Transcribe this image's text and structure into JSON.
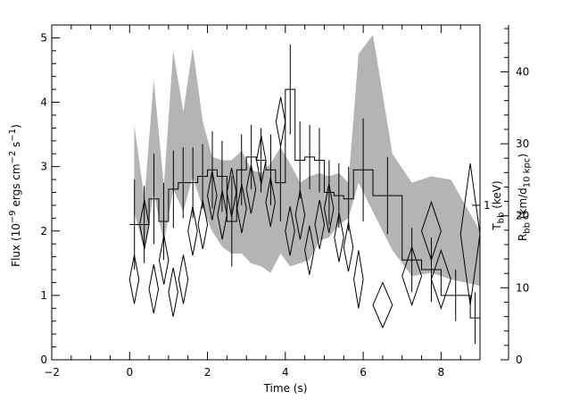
{
  "chart_data": {
    "type": "line",
    "xlabel": "Time (s)",
    "ylabel_left": "Flux (10<sup>−9</sup> ergs cm<sup>−2</sup> s<sup>−1</sup>)",
    "ylabel_right_1": "T<sub>bb</sub> (keV)",
    "ylabel_right_2": "R<sub>bb</sub> (km/d<sub>10 kpc</sub>)",
    "xlim": [
      -2,
      9
    ],
    "ylim_left": [
      0,
      5.2
    ],
    "ylim_right": [
      0,
      46.5
    ],
    "xticks": [
      -2,
      0,
      2,
      4,
      6,
      8
    ],
    "xtick_labels": [
      "−2",
      "0",
      "2",
      "4",
      "6",
      "8"
    ],
    "yticks_left": [
      0,
      1,
      2,
      3,
      4,
      5
    ],
    "yticks_right": [
      0,
      10,
      20,
      30,
      40
    ],
    "tbb_marker": {
      "label": "1",
      "y_left": 2.4
    },
    "flux_series": {
      "name": "Flux",
      "bins": [
        {
          "x0": 0.0,
          "x1": 0.25,
          "y": 2.1,
          "err": 0.7
        },
        {
          "x0": 0.25,
          "x1": 0.5,
          "y": 2.1,
          "err": 0.6
        },
        {
          "x0": 0.5,
          "x1": 0.75,
          "y": 2.5,
          "err": 0.7
        },
        {
          "x0": 0.75,
          "x1": 1.0,
          "y": 2.15,
          "err": 0.6
        },
        {
          "x0": 1.0,
          "x1": 1.25,
          "y": 2.65,
          "err": 0.6
        },
        {
          "x0": 1.25,
          "x1": 1.5,
          "y": 2.75,
          "err": 0.55
        },
        {
          "x0": 1.5,
          "x1": 1.75,
          "y": 2.75,
          "err": 0.55
        },
        {
          "x0": 1.75,
          "x1": 2.0,
          "y": 2.85,
          "err": 0.5
        },
        {
          "x0": 2.0,
          "x1": 2.25,
          "y": 2.95,
          "err": 0.6
        },
        {
          "x0": 2.25,
          "x1": 2.5,
          "y": 2.85,
          "err": 0.55
        },
        {
          "x0": 2.5,
          "x1": 2.75,
          "y": 2.15,
          "err": 0.7
        },
        {
          "x0": 2.75,
          "x1": 3.0,
          "y": 2.95,
          "err": 0.55
        },
        {
          "x0": 3.0,
          "x1": 3.25,
          "y": 3.15,
          "err": 0.5
        },
        {
          "x0": 3.25,
          "x1": 3.5,
          "y": 3.1,
          "err": 0.5
        },
        {
          "x0": 3.5,
          "x1": 3.75,
          "y": 2.95,
          "err": 0.55
        },
        {
          "x0": 3.75,
          "x1": 4.0,
          "y": 2.75,
          "err": 0.6
        },
        {
          "x0": 4.0,
          "x1": 4.25,
          "y": 4.2,
          "err": 0.7
        },
        {
          "x0": 4.25,
          "x1": 4.5,
          "y": 3.1,
          "err": 0.6
        },
        {
          "x0": 4.5,
          "x1": 4.75,
          "y": 3.15,
          "err": 0.5
        },
        {
          "x0": 4.75,
          "x1": 5.0,
          "y": 3.1,
          "err": 0.5
        },
        {
          "x0": 5.0,
          "x1": 5.25,
          "y": 2.6,
          "err": 0.5
        },
        {
          "x0": 5.25,
          "x1": 5.5,
          "y": 2.55,
          "err": 0.5
        },
        {
          "x0": 5.5,
          "x1": 5.75,
          "y": 2.5,
          "err": 0.5
        },
        {
          "x0": 5.75,
          "x1": 6.25,
          "y": 2.95,
          "err": 0.8
        },
        {
          "x0": 6.25,
          "x1": 7.0,
          "y": 2.55,
          "err": 0.6
        },
        {
          "x0": 7.0,
          "x1": 7.5,
          "y": 1.55,
          "err": 0.5
        },
        {
          "x0": 7.5,
          "x1": 8.0,
          "y": 1.4,
          "err": 0.5
        },
        {
          "x0": 8.0,
          "x1": 8.75,
          "y": 1.0,
          "err": 0.4
        },
        {
          "x0": 8.75,
          "x1": 9.0,
          "y": 0.65,
          "err": 0.4
        }
      ]
    },
    "rbb_series": {
      "name": "Rbb",
      "points": [
        {
          "x": 0.12,
          "y": 1.25,
          "dx": 0.12,
          "dy": 0.38
        },
        {
          "x": 0.38,
          "y": 2.1,
          "dx": 0.12,
          "dy": 0.38
        },
        {
          "x": 0.62,
          "y": 1.1,
          "dx": 0.12,
          "dy": 0.38
        },
        {
          "x": 0.88,
          "y": 1.55,
          "dx": 0.12,
          "dy": 0.38
        },
        {
          "x": 1.12,
          "y": 1.05,
          "dx": 0.12,
          "dy": 0.38
        },
        {
          "x": 1.38,
          "y": 1.25,
          "dx": 0.12,
          "dy": 0.38
        },
        {
          "x": 1.62,
          "y": 2.0,
          "dx": 0.12,
          "dy": 0.38
        },
        {
          "x": 1.88,
          "y": 2.1,
          "dx": 0.12,
          "dy": 0.38
        },
        {
          "x": 2.12,
          "y": 2.55,
          "dx": 0.12,
          "dy": 0.38
        },
        {
          "x": 2.38,
          "y": 2.25,
          "dx": 0.12,
          "dy": 0.38
        },
        {
          "x": 2.62,
          "y": 2.6,
          "dx": 0.12,
          "dy": 0.38
        },
        {
          "x": 2.88,
          "y": 2.35,
          "dx": 0.12,
          "dy": 0.38
        },
        {
          "x": 3.12,
          "y": 2.65,
          "dx": 0.12,
          "dy": 0.38
        },
        {
          "x": 3.38,
          "y": 3.1,
          "dx": 0.12,
          "dy": 0.38
        },
        {
          "x": 3.62,
          "y": 2.45,
          "dx": 0.12,
          "dy": 0.38
        },
        {
          "x": 3.88,
          "y": 3.7,
          "dx": 0.12,
          "dy": 0.38
        },
        {
          "x": 4.12,
          "y": 2.0,
          "dx": 0.12,
          "dy": 0.38
        },
        {
          "x": 4.38,
          "y": 2.25,
          "dx": 0.12,
          "dy": 0.38
        },
        {
          "x": 4.62,
          "y": 1.7,
          "dx": 0.12,
          "dy": 0.38
        },
        {
          "x": 4.88,
          "y": 2.1,
          "dx": 0.12,
          "dy": 0.38
        },
        {
          "x": 5.12,
          "y": 2.35,
          "dx": 0.12,
          "dy": 0.38
        },
        {
          "x": 5.38,
          "y": 1.9,
          "dx": 0.12,
          "dy": 0.38
        },
        {
          "x": 5.62,
          "y": 1.75,
          "dx": 0.12,
          "dy": 0.38
        },
        {
          "x": 5.88,
          "y": 1.25,
          "dx": 0.12,
          "dy": 0.45
        },
        {
          "x": 6.5,
          "y": 0.85,
          "dx": 0.25,
          "dy": 0.35
        },
        {
          "x": 7.25,
          "y": 1.3,
          "dx": 0.25,
          "dy": 0.45
        },
        {
          "x": 7.75,
          "y": 2.0,
          "dx": 0.25,
          "dy": 0.45
        },
        {
          "x": 8.0,
          "y": 1.25,
          "dx": 0.25,
          "dy": 0.45
        },
        {
          "x": 8.75,
          "y": 1.95,
          "dx": 0.25,
          "dy": 1.1
        }
      ]
    },
    "tbb_band": {
      "name": "Tbb",
      "x": [
        0.12,
        0.38,
        0.62,
        0.88,
        1.12,
        1.38,
        1.62,
        1.88,
        2.12,
        2.38,
        2.62,
        2.88,
        3.12,
        3.38,
        3.62,
        3.88,
        4.12,
        4.38,
        4.62,
        4.88,
        5.12,
        5.38,
        5.62,
        5.88,
        6.25,
        6.75,
        7.25,
        7.75,
        8.25,
        9.0
      ],
      "upper": [
        3.65,
        2.5,
        4.35,
        2.7,
        4.8,
        3.85,
        4.85,
        3.7,
        3.15,
        3.1,
        3.1,
        3.25,
        2.95,
        2.9,
        3.05,
        3.3,
        3.05,
        2.75,
        2.85,
        2.9,
        2.85,
        2.9,
        2.75,
        4.75,
        5.05,
        3.2,
        2.75,
        2.85,
        2.8,
        2.0
      ],
      "lower": [
        2.3,
        1.7,
        2.6,
        1.8,
        2.65,
        2.3,
        2.85,
        2.35,
        2.0,
        1.75,
        1.65,
        1.65,
        1.5,
        1.45,
        1.35,
        1.65,
        1.45,
        1.5,
        1.55,
        1.85,
        1.9,
        2.1,
        2.2,
        2.75,
        2.3,
        1.7,
        1.3,
        1.35,
        1.25,
        1.15
      ]
    }
  }
}
